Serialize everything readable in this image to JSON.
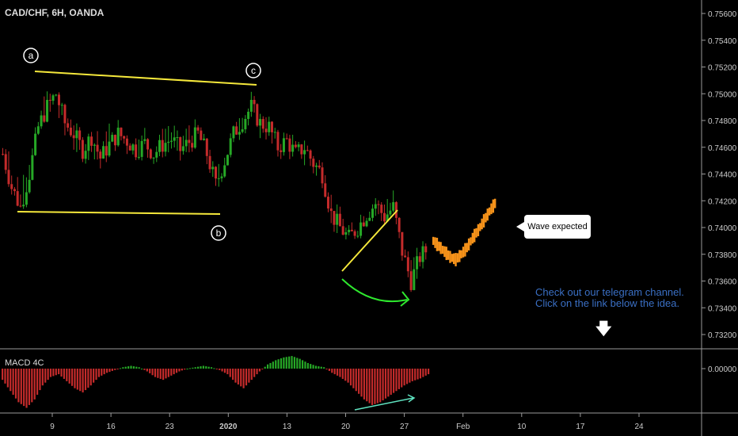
{
  "header": {
    "symbol": "CAD/CHF, 6H, OANDA"
  },
  "macd": {
    "label": "MACD 4C",
    "zero_label": "0.00000"
  },
  "annotations": {
    "wave_labels": [
      "a",
      "b",
      "c"
    ],
    "callout": "Wave expected",
    "note_line1": "Check out our telegram channel.",
    "note_line2": "Click on the link below the idea."
  },
  "colors": {
    "up": "#26a826",
    "down": "#c42b2b",
    "projection": "#f7931a",
    "trendline": "#f5e83b",
    "curve": "#2ee82e",
    "note": "#3a6fc4"
  },
  "chart_data": {
    "type": "candlestick",
    "title": "CAD/CHF, 6H, OANDA",
    "y_ticks": [
      0.732,
      0.734,
      0.736,
      0.738,
      0.74,
      0.742,
      0.744,
      0.746,
      0.748,
      0.75,
      0.752,
      0.754,
      0.756
    ],
    "y_tick_labels": [
      "0.73200",
      "0.73400",
      "0.73600",
      "0.73800",
      "0.74000",
      "0.74200",
      "0.74400",
      "0.74600",
      "0.74800",
      "0.75000",
      "0.75200",
      "0.75400",
      "0.75600"
    ],
    "ylim": [
      0.731,
      0.757
    ],
    "x_tick_labels": [
      "9",
      "16",
      "23",
      "2020",
      "13",
      "20",
      "27",
      "Feb",
      "10",
      "17",
      "24"
    ],
    "price_path": [
      [
        0.7455,
        0.7468,
        0.744
      ],
      [
        0.743,
        0.747,
        0.742
      ],
      [
        0.7415,
        0.7445,
        0.7408
      ],
      [
        0.744,
        0.748,
        0.743
      ],
      [
        0.7475,
        0.7492,
        0.746
      ],
      [
        0.749,
        0.7518,
        0.748
      ],
      [
        0.75,
        0.7508,
        0.747
      ],
      [
        0.7478,
        0.7495,
        0.746
      ],
      [
        0.747,
        0.7485,
        0.745
      ],
      [
        0.7458,
        0.7476,
        0.744
      ],
      [
        0.7468,
        0.7484,
        0.7448
      ],
      [
        0.7452,
        0.748,
        0.7436
      ],
      [
        0.7462,
        0.749,
        0.7445
      ],
      [
        0.747,
        0.7486,
        0.745
      ],
      [
        0.7465,
        0.748,
        0.7448
      ],
      [
        0.7458,
        0.7478,
        0.7444
      ],
      [
        0.7463,
        0.7488,
        0.745
      ],
      [
        0.7455,
        0.7472,
        0.744
      ],
      [
        0.7462,
        0.7481,
        0.7446
      ],
      [
        0.7466,
        0.7486,
        0.7452
      ],
      [
        0.7458,
        0.7478,
        0.7445
      ],
      [
        0.7464,
        0.7486,
        0.7447
      ],
      [
        0.747,
        0.7492,
        0.7452
      ],
      [
        0.7455,
        0.7471,
        0.7438
      ],
      [
        0.7432,
        0.745,
        0.741
      ],
      [
        0.745,
        0.747,
        0.7436
      ],
      [
        0.747,
        0.7485,
        0.7455
      ],
      [
        0.748,
        0.75,
        0.7465
      ],
      [
        0.749,
        0.7506,
        0.747
      ],
      [
        0.7478,
        0.7492,
        0.746
      ],
      [
        0.7475,
        0.7488,
        0.7455
      ],
      [
        0.746,
        0.7476,
        0.7444
      ],
      [
        0.7465,
        0.7482,
        0.745
      ],
      [
        0.7455,
        0.7472,
        0.744
      ],
      [
        0.746,
        0.747,
        0.7438
      ],
      [
        0.7448,
        0.7465,
        0.743
      ],
      [
        0.744,
        0.7458,
        0.742
      ],
      [
        0.741,
        0.7432,
        0.7395
      ],
      [
        0.74,
        0.742,
        0.7385
      ],
      [
        0.7392,
        0.7408,
        0.737
      ],
      [
        0.74,
        0.7418,
        0.7388
      ],
      [
        0.741,
        0.743,
        0.7398
      ],
      [
        0.7418,
        0.7432,
        0.7404
      ],
      [
        0.7408,
        0.7428,
        0.7395
      ],
      [
        0.7415,
        0.744,
        0.7402
      ],
      [
        0.7382,
        0.7412,
        0.7365
      ],
      [
        0.736,
        0.7385,
        0.7348
      ],
      [
        0.7378,
        0.7395,
        0.736
      ],
      [
        0.7385,
        0.7395,
        0.7375
      ]
    ],
    "projection": [
      0.739,
      0.7386,
      0.7382,
      0.7378,
      0.7376,
      0.738,
      0.7385,
      0.7392,
      0.7398,
      0.7405,
      0.7412,
      0.7418
    ],
    "waves": [
      {
        "label": "a",
        "price": 0.7526
      },
      {
        "label": "b",
        "price": 0.7406
      },
      {
        "label": "c",
        "price": 0.751
      }
    ],
    "macd_zero": 0.0,
    "macd_range": [
      -0.003,
      0.0012
    ],
    "macd_values": [
      -0.0008,
      -0.0016,
      -0.0024,
      -0.0028,
      -0.0022,
      -0.0012,
      -0.0006,
      -0.0004,
      -0.0009,
      -0.0014,
      -0.0017,
      -0.0012,
      -0.0006,
      -0.0003,
      -0.0001,
      0.0001,
      0.0002,
      0.0001,
      -0.0002,
      -0.0006,
      -0.0008,
      -0.0005,
      -0.0002,
      0.0,
      0.0001,
      0.0002,
      0.0001,
      -0.0001,
      -0.0004,
      -0.001,
      -0.0014,
      -0.0008,
      -0.0002,
      0.0003,
      0.0006,
      0.0008,
      0.0009,
      0.0007,
      0.0004,
      0.0002,
      0.0001,
      -0.0003,
      -0.0006,
      -0.001,
      -0.0016,
      -0.0022,
      -0.0026,
      -0.0024,
      -0.002,
      -0.0016,
      -0.0012,
      -0.0009,
      -0.0007,
      -0.0004
    ]
  }
}
